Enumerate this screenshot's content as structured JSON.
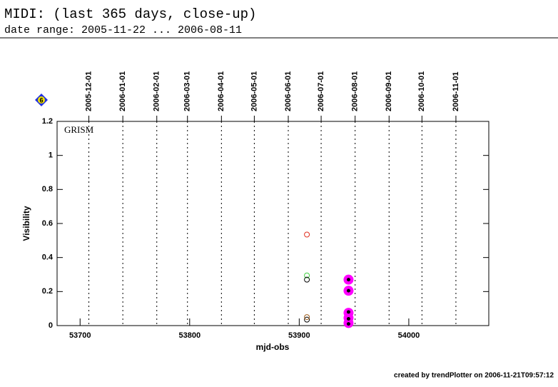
{
  "chart_data": {
    "type": "scatter",
    "title": "MIDI: (last 365 days, close-up)",
    "subtitle": "date range: 2005-11-22 ... 2006-08-11",
    "badge": "6",
    "annotation": "GRISM",
    "x_label": "mjd-obs",
    "y_label": "Visibility",
    "footer": "created by trendPlotter on 2006-11-21T09:57:12",
    "xlim": [
      53679,
      54073
    ],
    "ylim": [
      0,
      1.2
    ],
    "xticks": [
      53700,
      53800,
      53900,
      54000
    ],
    "yticks": [
      0,
      0.2,
      0.4,
      0.6,
      0.8,
      1,
      1.2
    ],
    "x2ticks": [
      {
        "value": 53708,
        "label": "2005-12-01"
      },
      {
        "value": 53739,
        "label": "2006-01-01"
      },
      {
        "value": 53770,
        "label": "2006-02-01"
      },
      {
        "value": 53798,
        "label": "2006-03-01"
      },
      {
        "value": 53829,
        "label": "2006-04-01"
      },
      {
        "value": 53859,
        "label": "2006-05-01"
      },
      {
        "value": 53890,
        "label": "2006-06-01"
      },
      {
        "value": 53920,
        "label": "2006-07-01"
      },
      {
        "value": 53951,
        "label": "2006-08-01"
      },
      {
        "value": 53982,
        "label": "2006-09-01"
      },
      {
        "value": 54012,
        "label": "2006-10-01"
      },
      {
        "value": 54043,
        "label": "2006-11-01"
      }
    ],
    "series": [
      {
        "color": "#e03020",
        "marker": "open",
        "x": [
          53907
        ],
        "values": [
          0.535
        ]
      },
      {
        "color": "#40d040",
        "marker": "open",
        "x": [
          53907
        ],
        "values": [
          0.295
        ]
      },
      {
        "color": "#000000",
        "marker": "open",
        "x": [
          53907,
          53907
        ],
        "values": [
          0.27,
          0.035
        ]
      },
      {
        "color": "#a06020",
        "marker": "open",
        "x": [
          53907
        ],
        "values": [
          0.05
        ]
      },
      {
        "color": "#ff00ff",
        "marker": "filled",
        "x": [
          53945,
          53945,
          53945,
          53945,
          53945
        ],
        "values": [
          0.27,
          0.205,
          0.075,
          0.045,
          0.015
        ]
      },
      {
        "color": "#000000",
        "marker": "dot",
        "x": [
          53945,
          53945,
          53945,
          53945,
          53945
        ],
        "values": [
          0.27,
          0.205,
          0.08,
          0.04,
          0.01
        ]
      }
    ]
  }
}
